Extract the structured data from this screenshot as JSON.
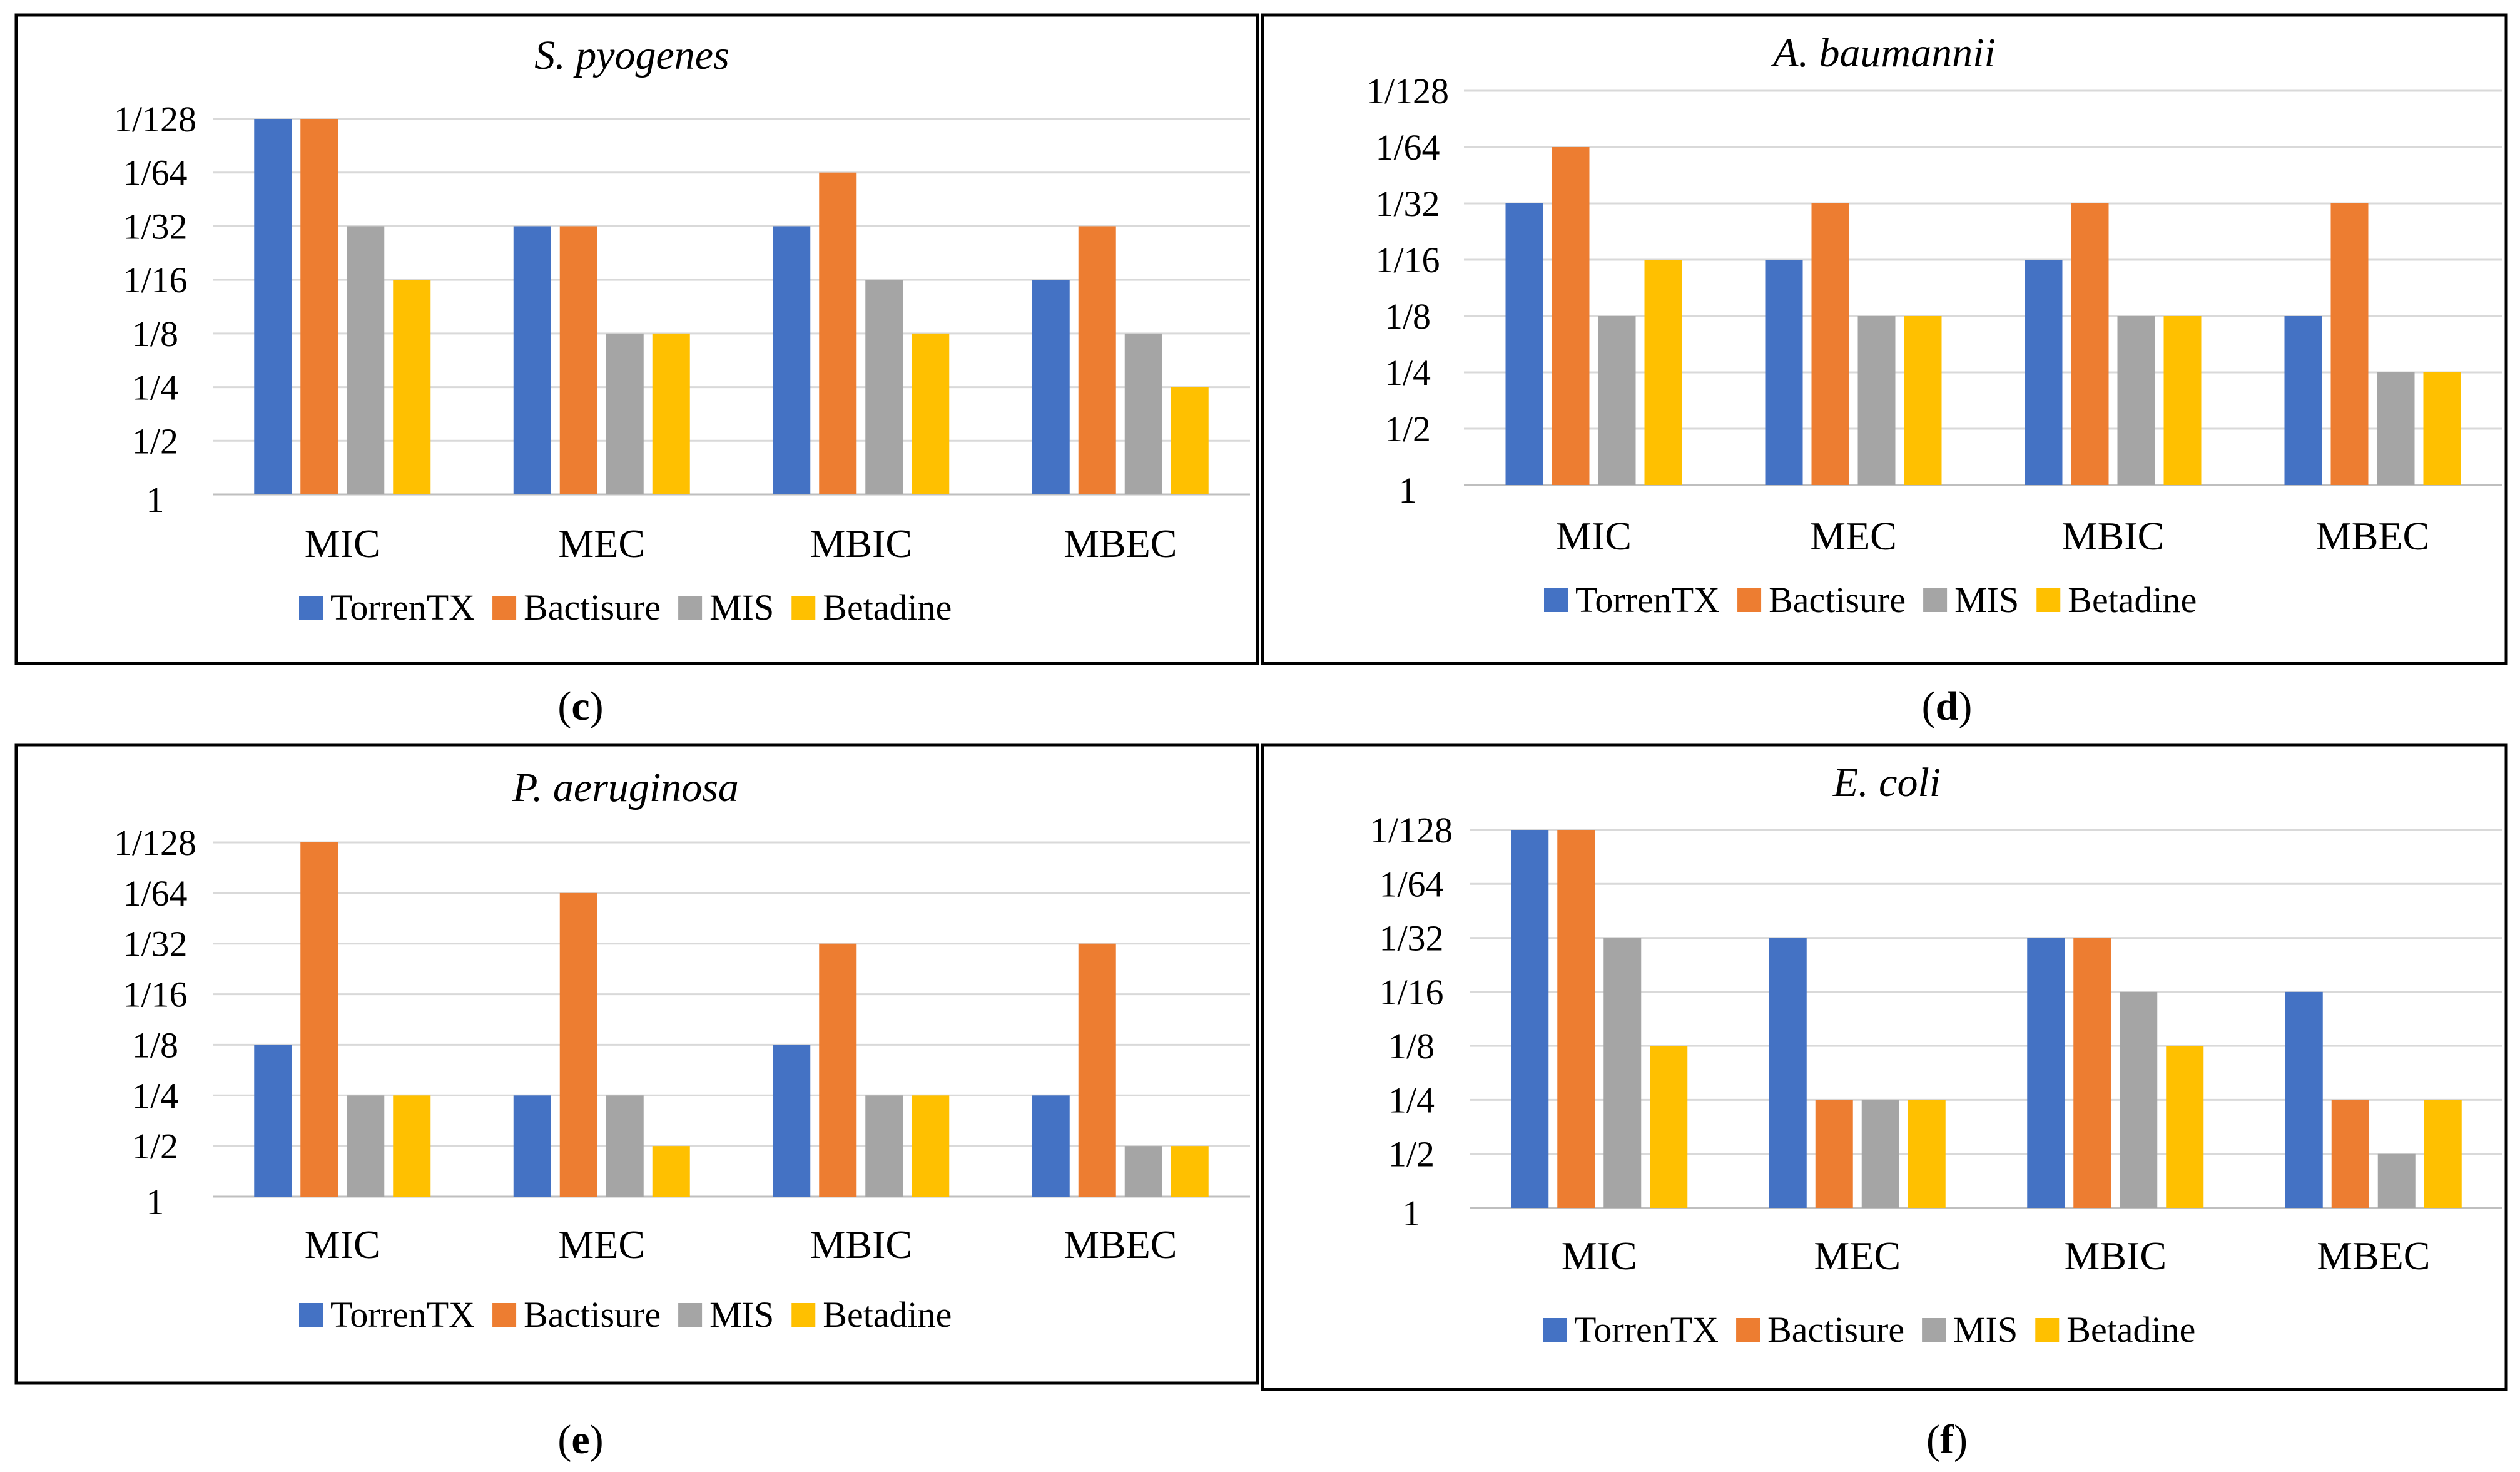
{
  "colors": {
    "TorrenTX": "#4472c4",
    "Bactisure": "#ed7d31",
    "MIS": "#a5a5a5",
    "Betadine": "#ffc000"
  },
  "chart_data": [
    {
      "type": "bar",
      "panel": "c",
      "title": "S. pyogenes",
      "categories": [
        "MIC",
        "MEC",
        "MBIC",
        "MBEC"
      ],
      "y_tick_labels": [
        "1",
        "1/2",
        "1/4",
        "1/8",
        "1/16",
        "1/32",
        "1/64",
        "1/128"
      ],
      "ylim": [
        0,
        7
      ],
      "value_unit": "dilution step (log2 of inverse dilution)",
      "series": [
        {
          "name": "TorrenTX",
          "values": [
            7,
            5,
            5,
            4
          ]
        },
        {
          "name": "Bactisure",
          "values": [
            7,
            5,
            6,
            5
          ]
        },
        {
          "name": "MIS",
          "values": [
            5,
            3,
            4,
            3
          ]
        },
        {
          "name": "Betadine",
          "values": [
            4,
            3,
            3,
            2
          ]
        }
      ],
      "legend": "bottom",
      "grid": true
    },
    {
      "type": "bar",
      "panel": "d",
      "title": "A. baumannii",
      "categories": [
        "MIC",
        "MEC",
        "MBIC",
        "MBEC"
      ],
      "y_tick_labels": [
        "1",
        "1/2",
        "1/4",
        "1/8",
        "1/16",
        "1/32",
        "1/64",
        "1/128"
      ],
      "ylim": [
        0,
        7
      ],
      "value_unit": "dilution step (log2 of inverse dilution)",
      "series": [
        {
          "name": "TorrenTX",
          "values": [
            5,
            4,
            4,
            3
          ]
        },
        {
          "name": "Bactisure",
          "values": [
            6,
            5,
            5,
            5
          ]
        },
        {
          "name": "MIS",
          "values": [
            3,
            3,
            3,
            2
          ]
        },
        {
          "name": "Betadine",
          "values": [
            4,
            3,
            3,
            2
          ]
        }
      ],
      "legend": "bottom",
      "grid": true
    },
    {
      "type": "bar",
      "panel": "e",
      "title": "P. aeruginosa",
      "categories": [
        "MIC",
        "MEC",
        "MBIC",
        "MBEC"
      ],
      "y_tick_labels": [
        "1",
        "1/2",
        "1/4",
        "1/8",
        "1/16",
        "1/32",
        "1/64",
        "1/128"
      ],
      "ylim": [
        0,
        7
      ],
      "value_unit": "dilution step (log2 of inverse dilution)",
      "series": [
        {
          "name": "TorrenTX",
          "values": [
            3,
            2,
            3,
            2
          ]
        },
        {
          "name": "Bactisure",
          "values": [
            7,
            6,
            5,
            5
          ]
        },
        {
          "name": "MIS",
          "values": [
            2,
            2,
            2,
            1
          ]
        },
        {
          "name": "Betadine",
          "values": [
            2,
            1,
            2,
            1
          ]
        }
      ],
      "legend": "bottom",
      "grid": true
    },
    {
      "type": "bar",
      "panel": "f",
      "title": "E. coli",
      "categories": [
        "MIC",
        "MEC",
        "MBIC",
        "MBEC"
      ],
      "y_tick_labels": [
        "1",
        "1/2",
        "1/4",
        "1/8",
        "1/16",
        "1/32",
        "1/64",
        "1/128"
      ],
      "ylim": [
        0,
        7
      ],
      "value_unit": "dilution step (log2 of inverse dilution)",
      "series": [
        {
          "name": "TorrenTX",
          "values": [
            7,
            5,
            5,
            4
          ]
        },
        {
          "name": "Bactisure",
          "values": [
            7,
            2,
            5,
            2
          ]
        },
        {
          "name": "MIS",
          "values": [
            5,
            2,
            4,
            1
          ]
        },
        {
          "name": "Betadine",
          "values": [
            3,
            2,
            3,
            2
          ]
        }
      ],
      "legend": "bottom",
      "grid": true
    }
  ],
  "captions": [
    {
      "open": "(",
      "letter": "c",
      "close": ")"
    },
    {
      "open": "(",
      "letter": "d",
      "close": ")"
    },
    {
      "open": "(",
      "letter": "e",
      "close": ")"
    },
    {
      "open": "(",
      "letter": "f",
      "close": ")"
    }
  ]
}
